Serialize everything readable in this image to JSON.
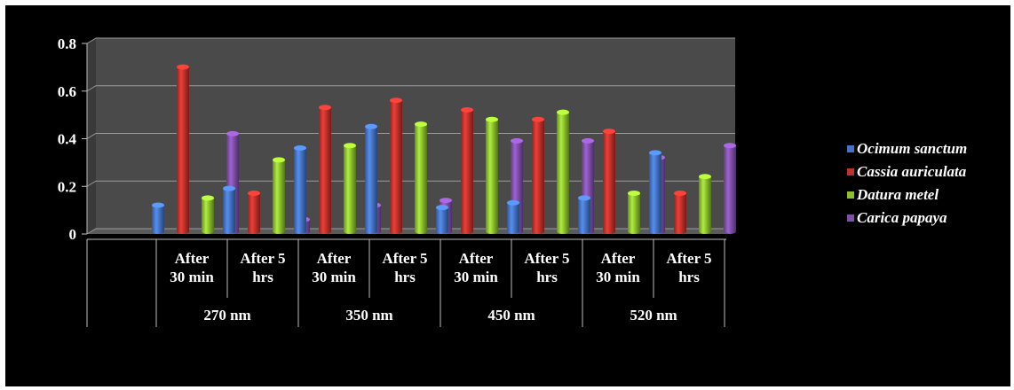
{
  "chart_data": {
    "type": "bar",
    "title": "",
    "xlabel": "",
    "ylabel": "",
    "ylim": [
      0,
      0.8
    ],
    "yticks": [
      0,
      0.2,
      0.4,
      0.6,
      0.8
    ],
    "ytick_labels": [
      "0",
      "0.2",
      "0.4",
      "0.6",
      "0.8"
    ],
    "grid": true,
    "legend_position": "right",
    "groups": [
      {
        "label": "270 nm",
        "categories": [
          "After 30 min",
          "After 5 hrs"
        ]
      },
      {
        "label": "350 nm",
        "categories": [
          "After 30 min",
          "After 5 hrs"
        ]
      },
      {
        "label": "450 nm",
        "categories": [
          "After 30 min",
          "After 5 hrs"
        ]
      },
      {
        "label": "520 nm",
        "categories": [
          "After 30 min",
          "After 5 hrs"
        ]
      }
    ],
    "series": [
      {
        "name": "Ocimum sanctum",
        "color": "#4472c4",
        "values": [
          0.11,
          0.18,
          0.35,
          0.44,
          0.1,
          0.12,
          0.14,
          0.33
        ]
      },
      {
        "name": "Cassia auriculata",
        "color": "#c0312b",
        "values": [
          0.69,
          0.16,
          0.52,
          0.55,
          0.51,
          0.47,
          0.42,
          0.16
        ]
      },
      {
        "name": "Datura metel",
        "color": "#8bbf2f",
        "values": [
          0.14,
          0.3,
          0.36,
          0.45,
          0.47,
          0.5,
          0.16,
          0.23
        ]
      },
      {
        "name": "Carica papaya",
        "color": "#7f4ea8",
        "values": [
          0.41,
          0.05,
          0.11,
          0.13,
          0.38,
          0.38,
          0.31,
          0.36
        ]
      }
    ]
  }
}
